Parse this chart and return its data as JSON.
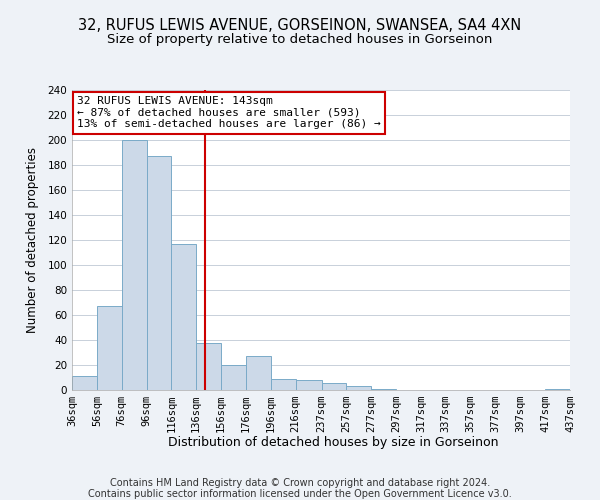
{
  "title": "32, RUFUS LEWIS AVENUE, GORSEINON, SWANSEA, SA4 4XN",
  "subtitle": "Size of property relative to detached houses in Gorseinon",
  "xlabel": "Distribution of detached houses by size in Gorseinon",
  "ylabel": "Number of detached properties",
  "bar_edges": [
    36,
    56,
    76,
    96,
    116,
    136,
    156,
    176,
    196,
    216,
    237,
    257,
    277,
    297,
    317,
    337,
    357,
    377,
    397,
    417,
    437
  ],
  "bar_heights": [
    11,
    67,
    200,
    187,
    117,
    38,
    20,
    27,
    9,
    8,
    6,
    3,
    1,
    0,
    0,
    0,
    0,
    0,
    0,
    1
  ],
  "bar_color": "#ccd9e8",
  "bar_edgecolor": "#7aaac8",
  "property_size": 143,
  "vline_color": "#cc0000",
  "annotation_line1": "32 RUFUS LEWIS AVENUE: 143sqm",
  "annotation_line2": "← 87% of detached houses are smaller (593)",
  "annotation_line3": "13% of semi-detached houses are larger (86) →",
  "annotation_boxcolor": "white",
  "annotation_boxedgecolor": "#cc0000",
  "ylim": [
    0,
    240
  ],
  "yticks": [
    0,
    20,
    40,
    60,
    80,
    100,
    120,
    140,
    160,
    180,
    200,
    220,
    240
  ],
  "footer_line1": "Contains HM Land Registry data © Crown copyright and database right 2024.",
  "footer_line2": "Contains public sector information licensed under the Open Government Licence v3.0.",
  "background_color": "#eef2f7",
  "plot_background_color": "white",
  "grid_color": "#c8d0da",
  "title_fontsize": 10.5,
  "subtitle_fontsize": 9.5,
  "xlabel_fontsize": 9,
  "ylabel_fontsize": 8.5,
  "tick_fontsize": 7.5,
  "annotation_fontsize": 8,
  "footer_fontsize": 7
}
